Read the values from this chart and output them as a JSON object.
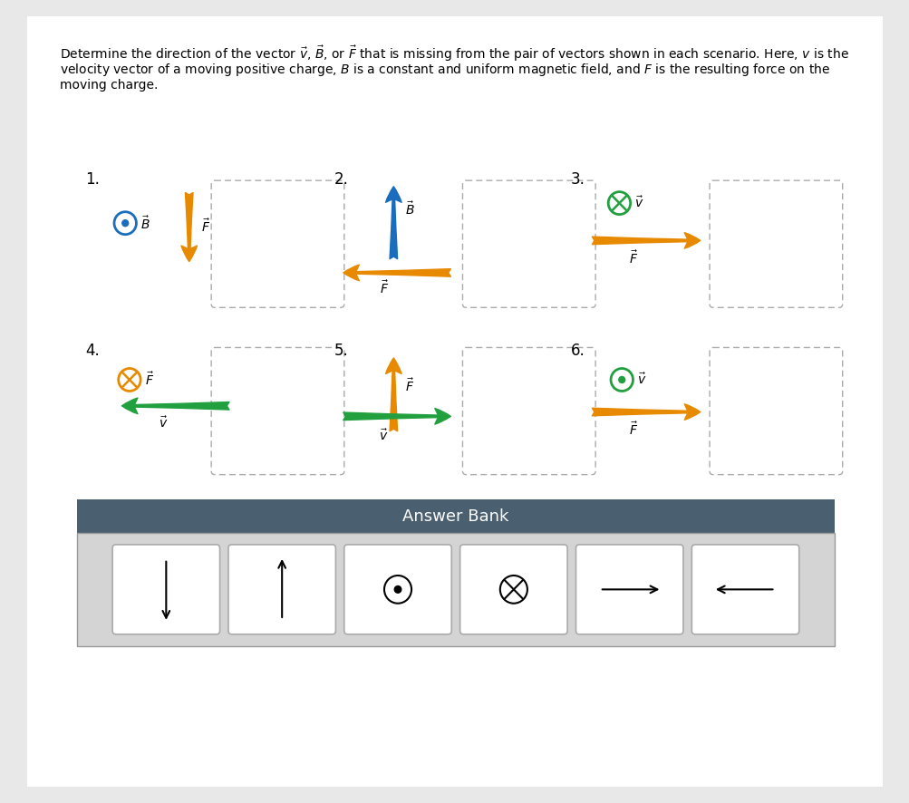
{
  "bg_color": "#e8e8e8",
  "panel_bg": "#ffffff",
  "title_lines": [
    "Determine the direction of the vector $\\vec{v}$, $\\vec{B}$, or $\\vec{F}$ that is missing from the pair of vectors shown in each scenario. Here, $v$ is the",
    "velocity vector of a moving positive charge, $B$ is a constant and uniform magnetic field, and $F$ is the resulting force on the",
    "moving charge."
  ],
  "orange": "#e88a00",
  "blue": "#1a6cbd",
  "green": "#22a040",
  "black": "#000000",
  "answer_bank_header": "Answer Bank",
  "header_bg": "#4a5f70"
}
